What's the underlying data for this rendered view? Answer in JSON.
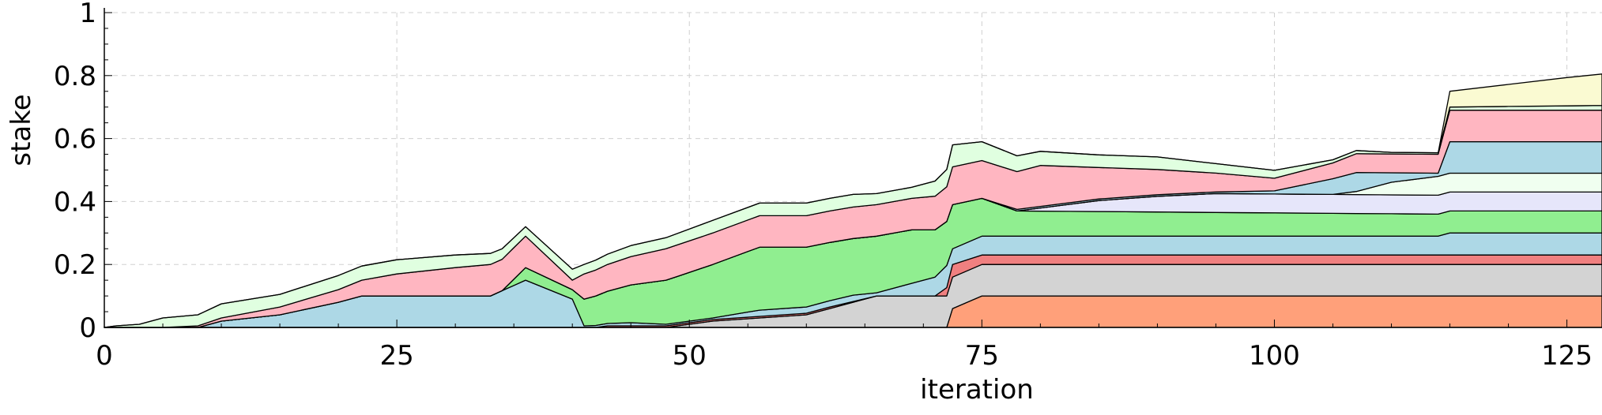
{
  "chart_data": {
    "type": "area",
    "stacked": true,
    "xlabel": "iteration",
    "ylabel": "stake",
    "xlim": [
      0,
      128
    ],
    "ylim": [
      0,
      1
    ],
    "x_ticks": [
      "0",
      "25",
      "50",
      "75",
      "100",
      "125"
    ],
    "y_ticks": [
      "0",
      "0.2",
      "0.4",
      "0.6",
      "0.8",
      "1"
    ],
    "grid": true,
    "series": [
      {
        "color": "#ffa07a",
        "points": [
          [
            0,
            0
          ],
          [
            72,
            0
          ],
          [
            72.5,
            0.06
          ],
          [
            75,
            0.1
          ],
          [
            128,
            0.1
          ]
        ]
      },
      {
        "color": "#d3d3d3",
        "points": [
          [
            0,
            0
          ],
          [
            48,
            0
          ],
          [
            52,
            0.02
          ],
          [
            60,
            0.04
          ],
          [
            66,
            0.1
          ],
          [
            72,
            0.1
          ],
          [
            72.5,
            0.1
          ],
          [
            75,
            0.1
          ],
          [
            128,
            0.1
          ]
        ]
      },
      {
        "color": "#f08080",
        "points": [
          [
            0,
            0
          ],
          [
            42,
            0
          ],
          [
            43,
            0.005
          ],
          [
            48,
            0.005
          ],
          [
            49,
            0.005
          ],
          [
            55,
            0.005
          ],
          [
            62,
            0.005
          ],
          [
            66,
            0
          ],
          [
            71,
            0
          ],
          [
            72.5,
            0.04
          ],
          [
            75,
            0.03
          ],
          [
            114,
            0.03
          ],
          [
            115,
            0.03
          ],
          [
            128,
            0.03
          ]
        ]
      },
      {
        "color": "#add8e6",
        "points": [
          [
            0,
            0
          ],
          [
            8,
            0
          ],
          [
            10,
            0.02
          ],
          [
            15,
            0.04
          ],
          [
            20,
            0.08
          ],
          [
            22,
            0.1
          ],
          [
            33,
            0.1
          ],
          [
            36,
            0.15
          ],
          [
            40,
            0.09
          ],
          [
            41,
            0.005
          ],
          [
            45,
            0.01
          ],
          [
            48,
            0.005
          ],
          [
            52,
            0.005
          ],
          [
            56,
            0.02
          ],
          [
            60,
            0.02
          ],
          [
            64,
            0.02
          ],
          [
            66,
            0.01
          ],
          [
            72,
            0.07
          ],
          [
            72.5,
            0.05
          ],
          [
            75,
            0.06
          ],
          [
            78,
            0.06
          ],
          [
            114,
            0.06
          ],
          [
            115,
            0.07
          ],
          [
            128,
            0.07
          ]
        ]
      },
      {
        "color": "#90ee90",
        "points": [
          [
            0,
            0
          ],
          [
            34,
            0
          ],
          [
            35,
            0.02
          ],
          [
            36,
            0.04
          ],
          [
            40,
            0.03
          ],
          [
            41,
            0.085
          ],
          [
            45,
            0.12
          ],
          [
            48,
            0.14
          ],
          [
            52,
            0.17
          ],
          [
            56,
            0.2
          ],
          [
            60,
            0.19
          ],
          [
            64,
            0.18
          ],
          [
            66,
            0.18
          ],
          [
            69,
            0.17
          ],
          [
            72,
            0.14
          ],
          [
            72.5,
            0.14
          ],
          [
            75,
            0.12
          ],
          [
            78,
            0.08
          ],
          [
            114,
            0.07
          ],
          [
            115,
            0.07
          ],
          [
            128,
            0.07
          ]
        ]
      },
      {
        "color": "#e6e6fa",
        "points": [
          [
            0,
            0
          ],
          [
            78,
            0
          ],
          [
            80,
            0.01
          ],
          [
            85,
            0.035
          ],
          [
            90,
            0.05
          ],
          [
            95,
            0.06
          ],
          [
            105,
            0.06
          ],
          [
            114,
            0.06
          ],
          [
            115,
            0.06
          ],
          [
            128,
            0.06
          ]
        ]
      },
      {
        "color": "#f0fff0",
        "points": [
          [
            0,
            0
          ],
          [
            100,
            0
          ],
          [
            105,
            0
          ],
          [
            107,
            0.01
          ],
          [
            110,
            0.04
          ],
          [
            114,
            0.06
          ],
          [
            115,
            0.06
          ],
          [
            128,
            0.06
          ]
        ]
      },
      {
        "color": "#add8e6",
        "points": [
          [
            0,
            0
          ],
          [
            72,
            0
          ],
          [
            75,
            0
          ],
          [
            78,
            0.005
          ],
          [
            85,
            0.005
          ],
          [
            90,
            0.005
          ],
          [
            95,
            0.005
          ],
          [
            100,
            0.01
          ],
          [
            105,
            0.05
          ],
          [
            107,
            0.06
          ],
          [
            110,
            0.03
          ],
          [
            114,
            0.01
          ],
          [
            115,
            0.1
          ],
          [
            128,
            0.1
          ]
        ]
      },
      {
        "color": "#ffb6c1",
        "points": [
          [
            0,
            0
          ],
          [
            5,
            0
          ],
          [
            8,
            0.005
          ],
          [
            10,
            0.01
          ],
          [
            15,
            0.025
          ],
          [
            20,
            0.04
          ],
          [
            22,
            0.05
          ],
          [
            25,
            0.07
          ],
          [
            30,
            0.09
          ],
          [
            33,
            0.1
          ],
          [
            36,
            0.1
          ],
          [
            40,
            0.03
          ],
          [
            41,
            0.08
          ],
          [
            45,
            0.09
          ],
          [
            48,
            0.1
          ],
          [
            52,
            0.1
          ],
          [
            56,
            0.1
          ],
          [
            60,
            0.1
          ],
          [
            64,
            0.1
          ],
          [
            66,
            0.1
          ],
          [
            69,
            0.1
          ],
          [
            72,
            0.11
          ],
          [
            72.5,
            0.12
          ],
          [
            75,
            0.12
          ],
          [
            78,
            0.12
          ],
          [
            80,
            0.13
          ],
          [
            85,
            0.1
          ],
          [
            90,
            0.08
          ],
          [
            95,
            0.06
          ],
          [
            100,
            0.04
          ],
          [
            105,
            0.05
          ],
          [
            107,
            0.06
          ],
          [
            110,
            0.06
          ],
          [
            114,
            0.06
          ],
          [
            115,
            0.1
          ],
          [
            128,
            0.1
          ]
        ]
      },
      {
        "color": "#e0ffe0",
        "points": [
          [
            0,
            0
          ],
          [
            1,
            0.005
          ],
          [
            3,
            0.01
          ],
          [
            5,
            0.03
          ],
          [
            8,
            0.035
          ],
          [
            10,
            0.045
          ],
          [
            15,
            0.04
          ],
          [
            20,
            0.045
          ],
          [
            22,
            0.045
          ],
          [
            25,
            0.045
          ],
          [
            30,
            0.04
          ],
          [
            33,
            0.035
          ],
          [
            36,
            0.03
          ],
          [
            40,
            0.035
          ],
          [
            41,
            0.03
          ],
          [
            45,
            0.035
          ],
          [
            48,
            0.035
          ],
          [
            52,
            0.04
          ],
          [
            56,
            0.04
          ],
          [
            60,
            0.04
          ],
          [
            64,
            0.04
          ],
          [
            66,
            0.035
          ],
          [
            69,
            0.035
          ],
          [
            72,
            0.055
          ],
          [
            72.5,
            0.07
          ],
          [
            75,
            0.06
          ],
          [
            78,
            0.05
          ],
          [
            80,
            0.045
          ],
          [
            85,
            0.04
          ],
          [
            90,
            0.04
          ],
          [
            95,
            0.03
          ],
          [
            100,
            0.025
          ],
          [
            105,
            0.01
          ],
          [
            107,
            0.01
          ],
          [
            110,
            0.005
          ],
          [
            114,
            0.005
          ],
          [
            115,
            0.01
          ],
          [
            128,
            0.015
          ]
        ]
      },
      {
        "color": "#fafad2",
        "points": [
          [
            0,
            0
          ],
          [
            110,
            0
          ],
          [
            114,
            0
          ],
          [
            115,
            0.05
          ],
          [
            120,
            0.07
          ],
          [
            125,
            0.09
          ],
          [
            128,
            0.1
          ]
        ]
      }
    ]
  }
}
